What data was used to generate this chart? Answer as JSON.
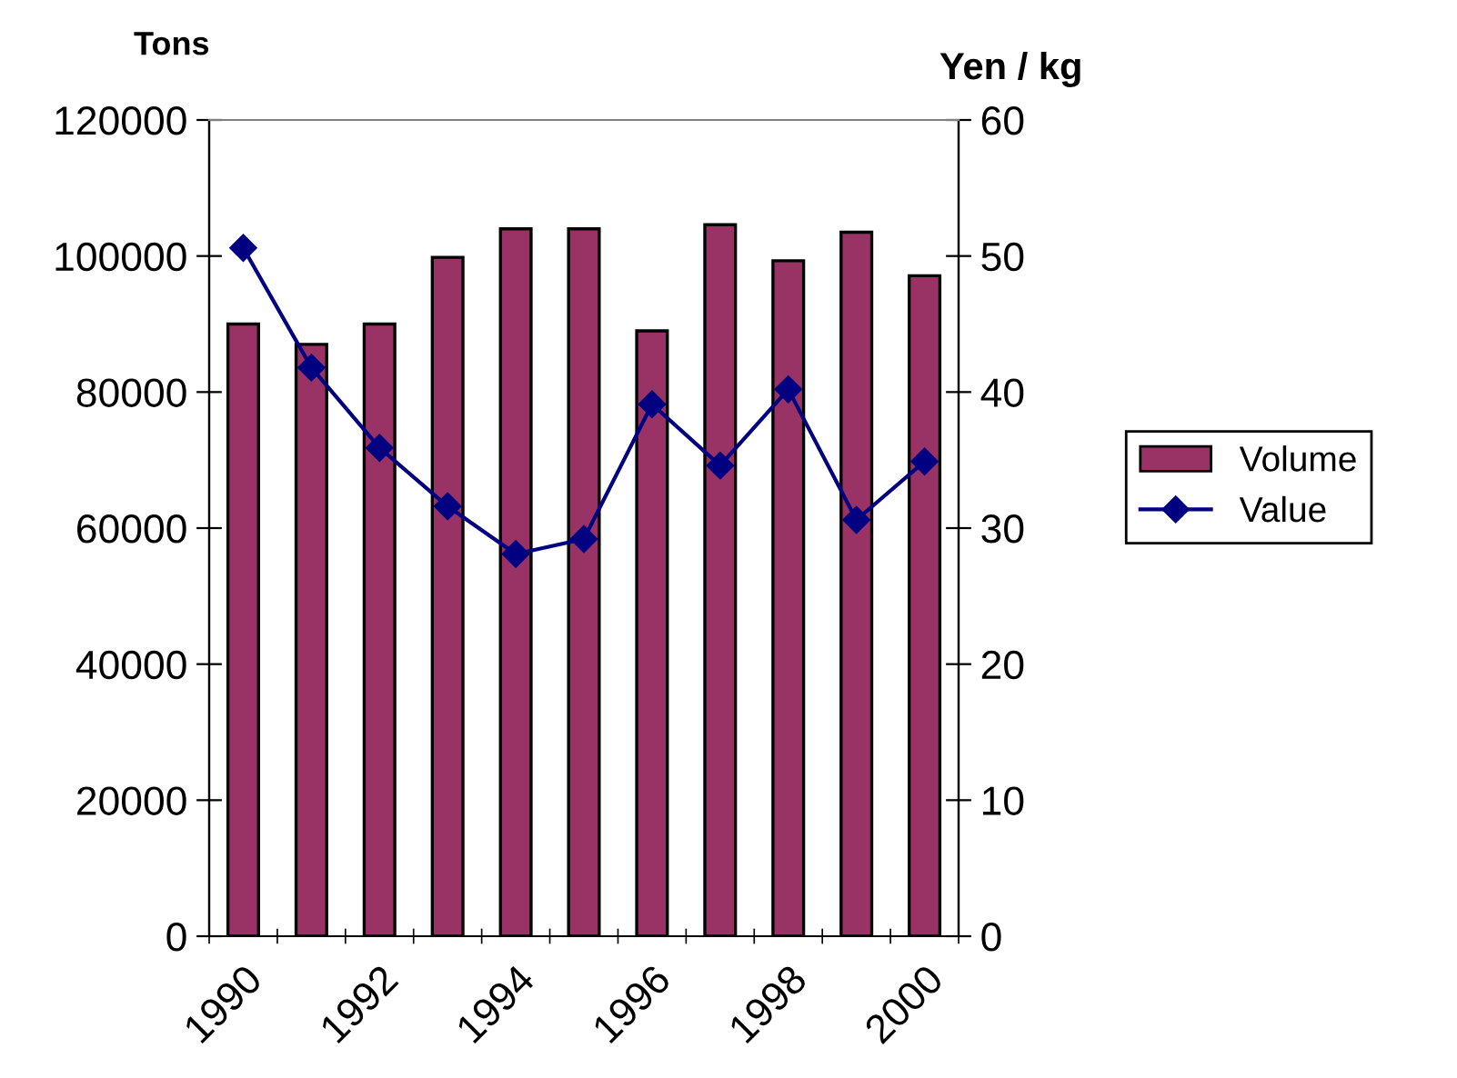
{
  "chart_data": {
    "type": "bar",
    "ylabel": "Tons",
    "y2label": "Yen / kg",
    "categories": [
      "1990",
      null,
      "1992",
      null,
      "1994",
      null,
      "1996",
      null,
      "1998",
      null,
      "2000"
    ],
    "series": [
      {
        "name": "Volume",
        "color": "#993366",
        "values": [
          90000,
          87000,
          90000,
          99800,
          104000,
          104000,
          89000,
          104600,
          99300,
          103500,
          97100
        ]
      },
      {
        "name": "Value",
        "type": "line",
        "axis": "y2",
        "color": "#000080",
        "marker": "diamond",
        "values": [
          50.6,
          41.8,
          35.9,
          31.6,
          28.1,
          29.2,
          39.1,
          34.6,
          40.2,
          30.6,
          34.9
        ]
      }
    ],
    "ylim": [
      0,
      120000
    ],
    "yticks": [
      0,
      20000,
      40000,
      60000,
      80000,
      100000,
      120000
    ],
    "y2lim": [
      0,
      60
    ],
    "y2ticks": [
      0,
      10,
      20,
      30,
      40,
      50,
      60
    ],
    "grid": false,
    "legend": "right"
  }
}
